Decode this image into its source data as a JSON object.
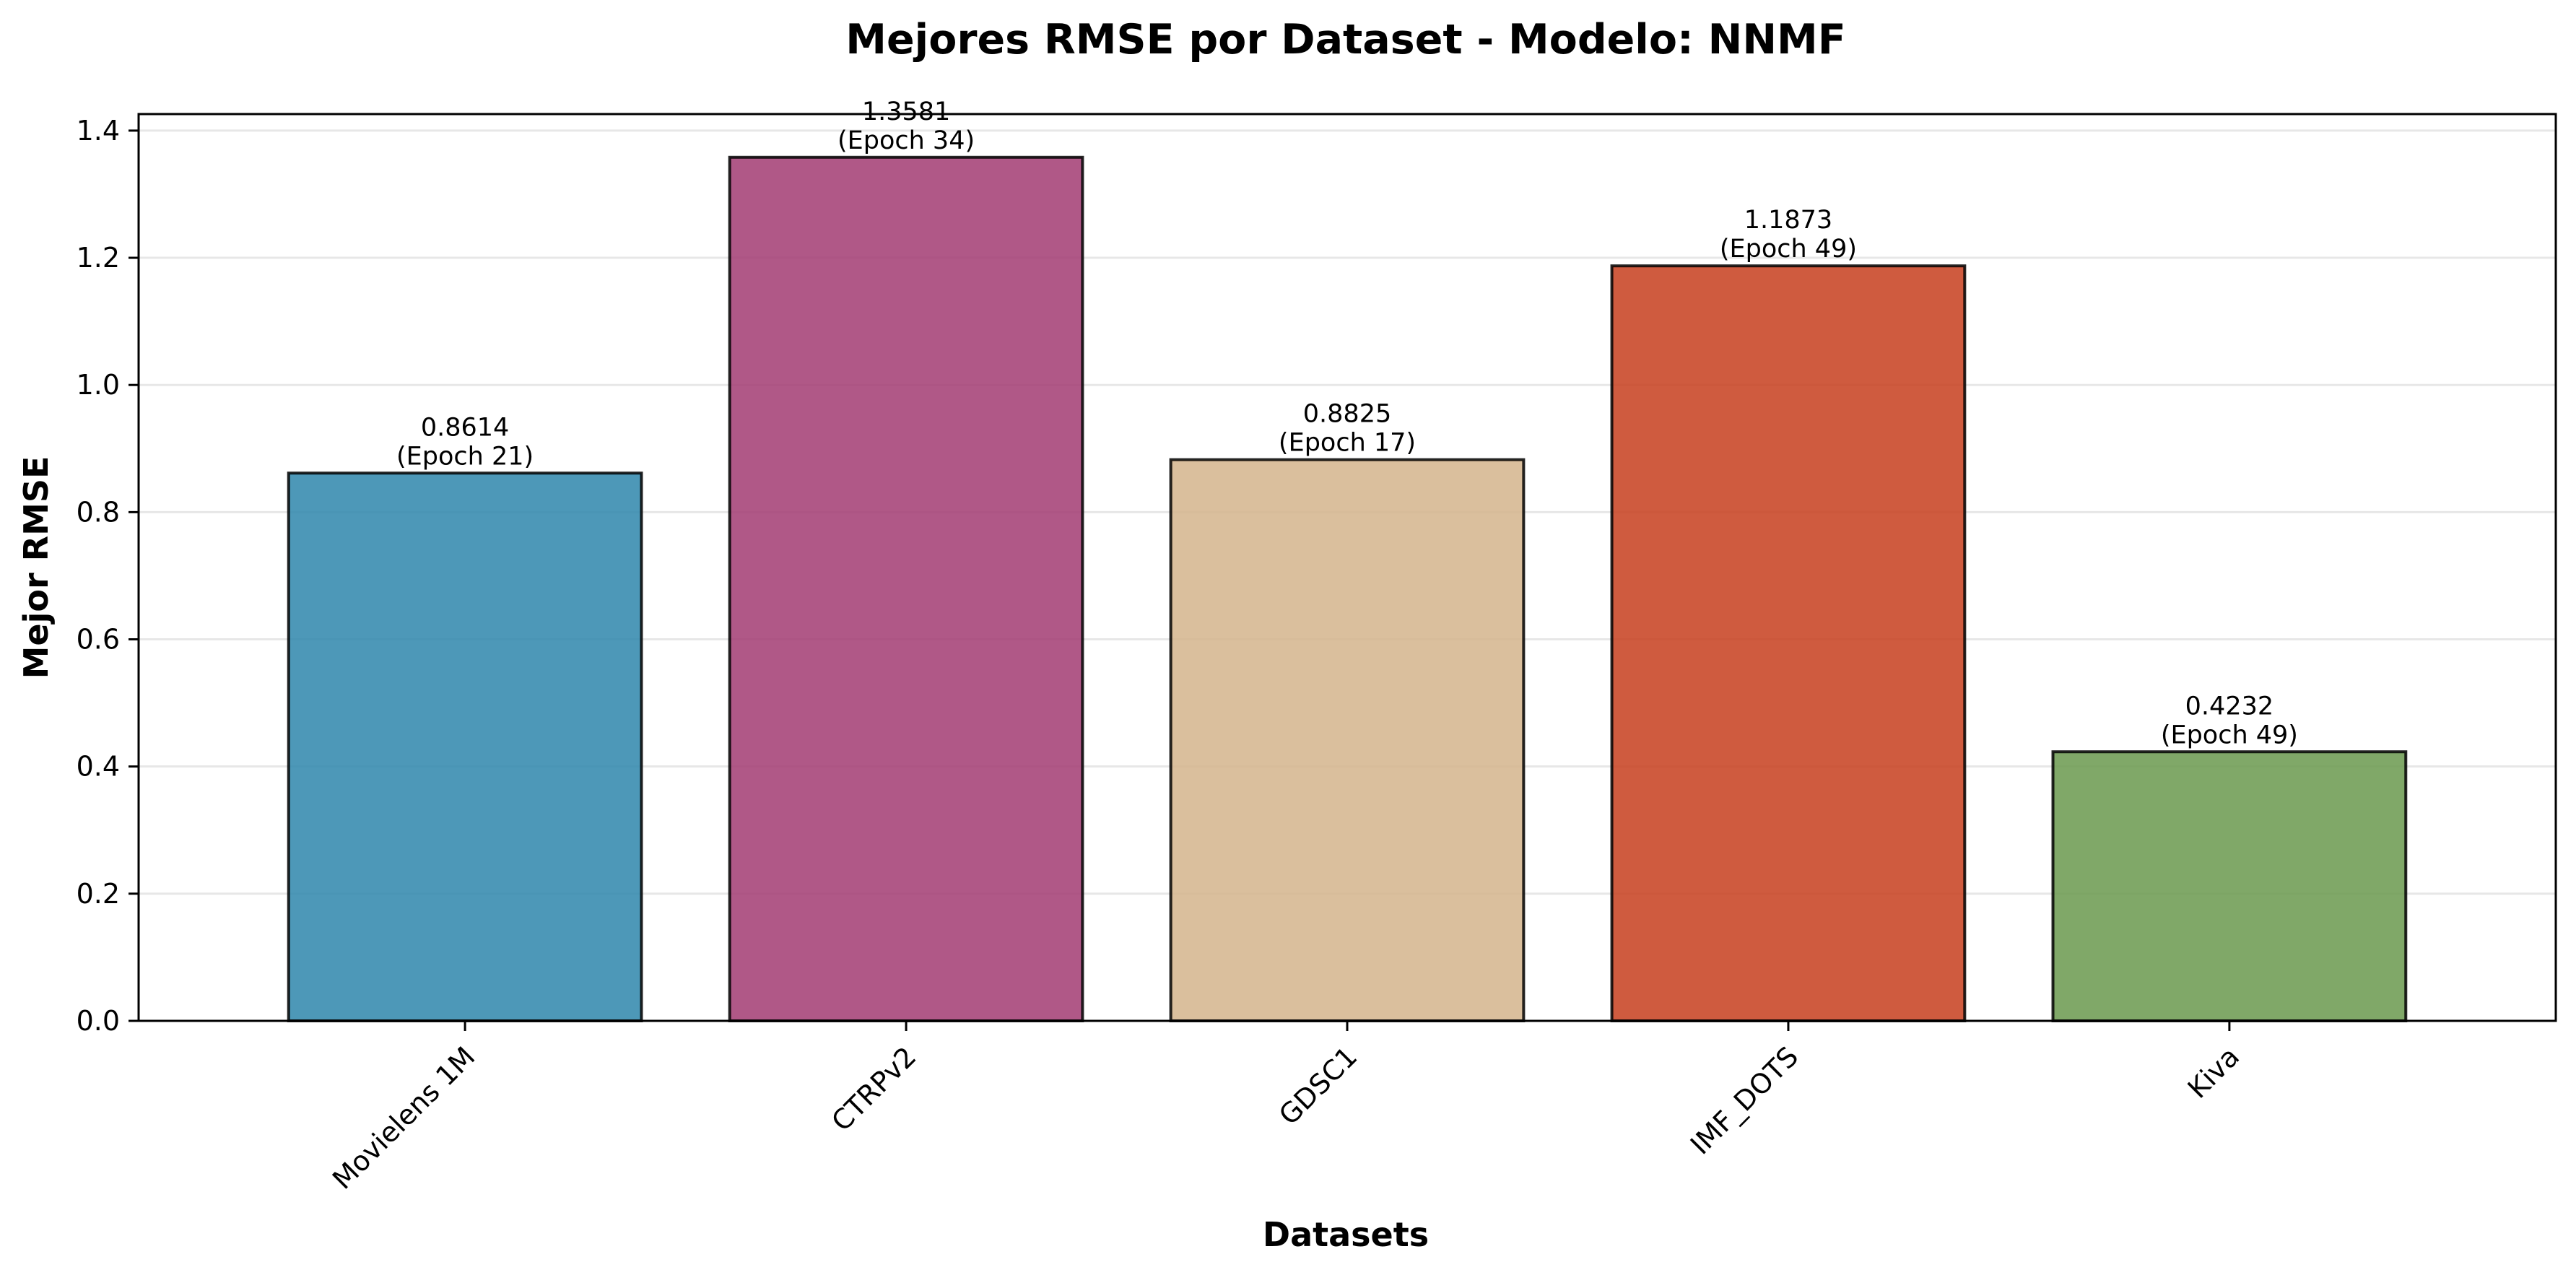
{
  "chart_data": {
    "type": "bar",
    "title": "Mejores RMSE por Dataset - Modelo: NNMF",
    "xlabel": "Datasets",
    "ylabel": "Mejor RMSE",
    "categories": [
      "Movielens 1M",
      "CTRPv2",
      "GDSC1",
      "IMF_DOTS",
      "Kiva"
    ],
    "values": [
      0.8614,
      1.3581,
      0.8825,
      1.1873,
      0.4232
    ],
    "value_labels": [
      "0.8614",
      "1.3581",
      "0.8825",
      "1.1873",
      "0.4232"
    ],
    "epoch_labels": [
      "(Epoch 21)",
      "(Epoch 34)",
      "(Epoch 17)",
      "(Epoch 49)",
      "(Epoch 49)"
    ],
    "colors": [
      "#2E86AB",
      "#A23B72",
      "#D4B48C",
      "#C73E1D",
      "#6A994E"
    ],
    "ylim": [
      0,
      1.426
    ],
    "yticks": [
      "0.0",
      "0.2",
      "0.4",
      "0.6",
      "0.8",
      "1.0",
      "1.2",
      "1.4"
    ],
    "ytick_values": [
      0,
      0.2,
      0.4,
      0.6,
      0.8,
      1.0,
      1.2,
      1.4
    ],
    "grid": "y",
    "legend": "none"
  }
}
